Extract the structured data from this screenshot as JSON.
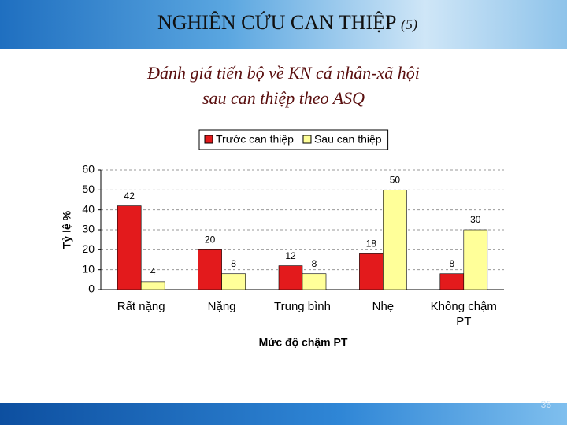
{
  "slide": {
    "heading": "NGHIÊN CỨU CAN THIỆP",
    "heading_suffix": "(5)",
    "page_number": "36"
  },
  "chart_data": {
    "type": "bar",
    "title": [
      "Đánh giá tiến bộ về KN cá nhân-xã hội",
      "sau can thiệp theo ASQ"
    ],
    "xlabel": "Mức độ chậm PT",
    "ylabel": "Tỷ lệ %",
    "categories": [
      "Rất nặng",
      "Nặng",
      "Trung bình",
      "Nhẹ",
      "Không chậm PT"
    ],
    "series": [
      {
        "name": "Trước can thiệp",
        "color": "#e31a1c",
        "values": [
          42,
          20,
          12,
          18,
          8
        ]
      },
      {
        "name": "Sau can thiệp",
        "color": "#ffff99",
        "values": [
          4,
          8,
          8,
          50,
          30
        ]
      }
    ],
    "ylim": [
      0,
      60
    ],
    "yticks": [
      0,
      10,
      20,
      30,
      40,
      50,
      60
    ],
    "grid": true,
    "legend": "top"
  }
}
